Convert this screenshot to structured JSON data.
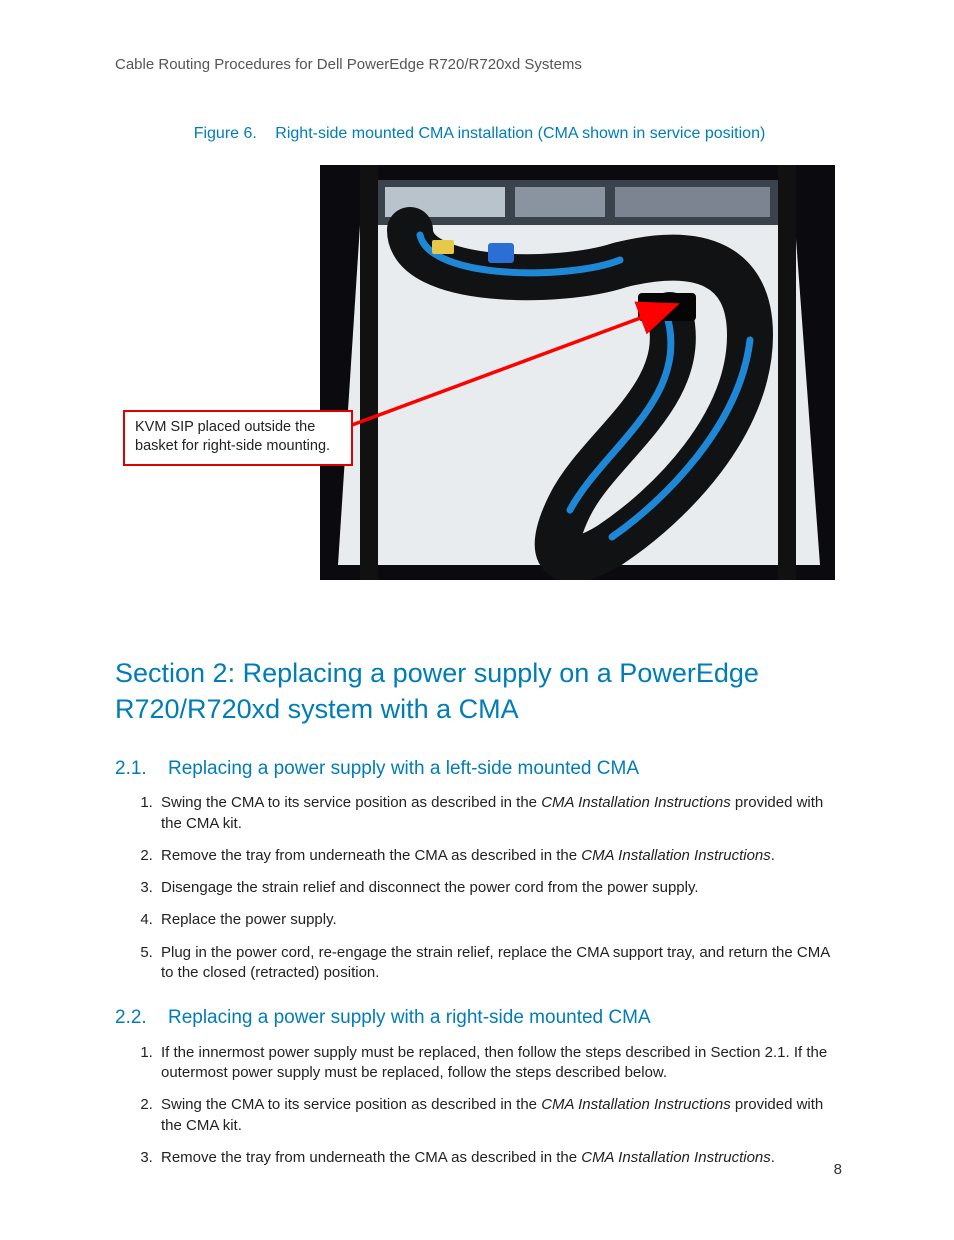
{
  "header": {
    "running_title": "Cable Routing Procedures for Dell PowerEdge R720/R720xd Systems"
  },
  "figure": {
    "label": "Figure 6.",
    "caption": "Right-side mounted CMA installation (CMA shown in service position)",
    "callout_text": "KVM SIP placed outside the basket for right-side mounting.",
    "callout_border_color": "#e10000",
    "arrow_color": "#ff0000",
    "photo": {
      "bg_dark": "#0b0b0f",
      "bg_light": "#e9ecef",
      "cable_blue": "#1e88d6",
      "cable_black": "#111214",
      "connector_yellow": "#e6c94a",
      "server_metal": "#b9c3cc"
    }
  },
  "section": {
    "title": "Section 2:  Replacing a power supply on a PowerEdge R720/R720xd system with a CMA"
  },
  "sub1": {
    "num": "2.1.",
    "title": "Replacing a power supply with a left-side mounted CMA",
    "steps": [
      {
        "pre": "Swing the CMA to its service position as described in the ",
        "em": "CMA Installation Instructions",
        "post": " provided with the CMA kit."
      },
      {
        "pre": "Remove the tray from underneath the CMA as described in the ",
        "em": "CMA Installation Instructions",
        "post": "."
      },
      {
        "pre": "Disengage the strain relief and disconnect the power cord from the power supply.",
        "em": "",
        "post": ""
      },
      {
        "pre": "Replace the power supply.",
        "em": "",
        "post": ""
      },
      {
        "pre": "Plug in the power cord, re-engage the strain relief, replace the CMA support tray, and return the CMA to the closed (retracted) position.",
        "em": "",
        "post": ""
      }
    ]
  },
  "sub2": {
    "num": "2.2.",
    "title": "Replacing a power supply with a right-side mounted CMA",
    "steps": [
      {
        "pre": "If the innermost power supply must be replaced, then follow the steps described in Section 2.1.  If the outermost power supply must be replaced, follow the steps described below.",
        "em": "",
        "post": ""
      },
      {
        "pre": "Swing the CMA to its service position as described in the ",
        "em": "CMA Installation Instructions",
        "post": " provided with the CMA kit."
      },
      {
        "pre": "Remove the tray from underneath the CMA as described in the ",
        "em": "CMA Installation Instructions",
        "post": "."
      }
    ]
  },
  "page_number": "8",
  "colors": {
    "accent": "#007db8",
    "body_text": "#333333",
    "header_text": "#555555"
  }
}
